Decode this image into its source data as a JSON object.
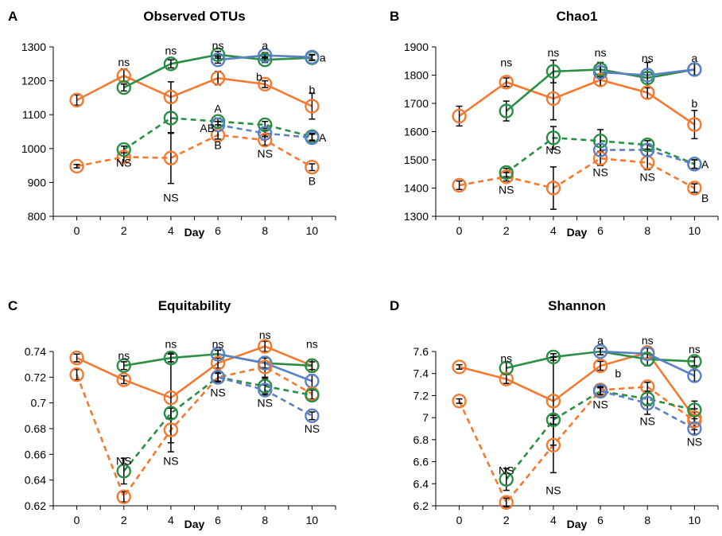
{
  "colors": {
    "orange": "#f47a32",
    "green": "#2a8f45",
    "blue": "#5b80c4",
    "error_bar": "#000000",
    "axis": "#000000"
  },
  "chart_data": [
    {
      "panel": "A",
      "title": "Observed OTUs",
      "type": "line",
      "xlabel": "Day",
      "ylabel": "",
      "xlim": [
        -1,
        11
      ],
      "xticks": [
        0,
        2,
        4,
        6,
        8,
        10
      ],
      "ylim": [
        800,
        1300
      ],
      "yticks": [
        800,
        900,
        1000,
        1100,
        1200,
        1300
      ],
      "grid": false,
      "legend": "none",
      "series": [
        {
          "color": "orange",
          "dashed": false,
          "x": [
            0,
            2,
            4,
            6,
            8,
            10
          ],
          "values": [
            1143,
            1215,
            1152,
            1208,
            1190,
            1125
          ],
          "error": [
            15,
            20,
            45,
            20,
            10,
            38
          ]
        },
        {
          "color": "green",
          "dashed": false,
          "x": [
            2,
            4,
            6,
            8,
            10
          ],
          "values": [
            1180,
            1250,
            1277,
            1262,
            1268
          ],
          "error": [
            10,
            12,
            10,
            8,
            8
          ]
        },
        {
          "color": "blue",
          "dashed": false,
          "x": [
            6,
            8,
            10
          ],
          "values": [
            1262,
            1275,
            1270
          ],
          "error": [
            10,
            8,
            8
          ]
        },
        {
          "color": "orange",
          "dashed": true,
          "x": [
            0,
            2,
            4,
            6,
            8,
            10
          ],
          "values": [
            948,
            975,
            972,
            1040,
            1025,
            945
          ],
          "error": [
            5,
            18,
            75,
            12,
            15,
            10
          ]
        },
        {
          "color": "green",
          "dashed": true,
          "x": [
            2,
            4,
            6,
            8,
            10
          ],
          "values": [
            997,
            1090,
            1080,
            1070,
            1035
          ],
          "error": [
            10,
            45,
            10,
            10,
            10
          ]
        },
        {
          "color": "blue",
          "dashed": true,
          "x": [
            6,
            8,
            10
          ],
          "values": [
            1070,
            1045,
            1032
          ],
          "error": [
            10,
            10,
            10
          ]
        }
      ],
      "annotations": [
        {
          "text": "ns",
          "x": 2,
          "y": 1255
        },
        {
          "text": "ns",
          "x": 4,
          "y": 1290
        },
        {
          "text": "ns",
          "x": 6,
          "y": 1305
        },
        {
          "text": "a",
          "x": 8,
          "y": 1305
        },
        {
          "text": "a",
          "x": 10.45,
          "y": 1268
        },
        {
          "text": "b",
          "x": 7.75,
          "y": 1212
        },
        {
          "text": "b",
          "x": 10,
          "y": 1175
        },
        {
          "text": "A",
          "x": 6,
          "y": 1118
        },
        {
          "text": "AB",
          "x": 5.55,
          "y": 1060
        },
        {
          "text": "A",
          "x": 10.45,
          "y": 1032
        },
        {
          "text": "B",
          "x": 6,
          "y": 1010
        },
        {
          "text": "NS",
          "x": 2,
          "y": 958
        },
        {
          "text": "NS",
          "x": 8,
          "y": 985
        },
        {
          "text": "B",
          "x": 10,
          "y": 905
        },
        {
          "text": "NS",
          "x": 4,
          "y": 855
        }
      ]
    },
    {
      "panel": "B",
      "title": "Chao1",
      "type": "line",
      "xlabel": "Day",
      "ylabel": "",
      "xlim": [
        -1,
        11
      ],
      "xticks": [
        0,
        2,
        4,
        6,
        8,
        10
      ],
      "ylim": [
        1300,
        1900
      ],
      "yticks": [
        1300,
        1400,
        1500,
        1600,
        1700,
        1800,
        1900
      ],
      "grid": false,
      "legend": "none",
      "series": [
        {
          "color": "orange",
          "dashed": false,
          "x": [
            0,
            2,
            4,
            6,
            8,
            10
          ],
          "values": [
            1655,
            1775,
            1717,
            1783,
            1738,
            1625
          ],
          "error": [
            35,
            15,
            75,
            20,
            20,
            50
          ]
        },
        {
          "color": "green",
          "dashed": false,
          "x": [
            2,
            4,
            6,
            8,
            10
          ],
          "values": [
            1673,
            1813,
            1820,
            1790,
            1820
          ],
          "error": [
            35,
            40,
            25,
            20,
            20
          ]
        },
        {
          "color": "blue",
          "dashed": false,
          "x": [
            6,
            8,
            10
          ],
          "values": [
            1810,
            1800,
            1820
          ],
          "error": [
            20,
            45,
            20
          ]
        },
        {
          "color": "orange",
          "dashed": true,
          "x": [
            0,
            2,
            4,
            6,
            8,
            10
          ],
          "values": [
            1410,
            1440,
            1400,
            1505,
            1490,
            1400
          ],
          "error": [
            15,
            15,
            75,
            25,
            25,
            15
          ]
        },
        {
          "color": "green",
          "dashed": true,
          "x": [
            2,
            4,
            6,
            8,
            10
          ],
          "values": [
            1455,
            1578,
            1567,
            1553,
            1485
          ],
          "error": [
            15,
            40,
            40,
            15,
            15
          ]
        },
        {
          "color": "blue",
          "dashed": true,
          "x": [
            6,
            8,
            10
          ],
          "values": [
            1535,
            1535,
            1485
          ],
          "error": [
            20,
            20,
            15
          ]
        }
      ],
      "annotations": [
        {
          "text": "ns",
          "x": 2,
          "y": 1845
        },
        {
          "text": "ns",
          "x": 4,
          "y": 1880
        },
        {
          "text": "ns",
          "x": 6,
          "y": 1880
        },
        {
          "text": "ns",
          "x": 8,
          "y": 1860
        },
        {
          "text": "a",
          "x": 10,
          "y": 1860
        },
        {
          "text": "b",
          "x": 10,
          "y": 1700
        },
        {
          "text": "A",
          "x": 10.45,
          "y": 1485
        },
        {
          "text": "NS",
          "x": 4,
          "y": 1535
        },
        {
          "text": "NS",
          "x": 6,
          "y": 1457
        },
        {
          "text": "NS",
          "x": 8,
          "y": 1440
        },
        {
          "text": "NS",
          "x": 2,
          "y": 1395
        },
        {
          "text": "B",
          "x": 10.45,
          "y": 1365
        }
      ]
    },
    {
      "panel": "C",
      "title": "Equitability",
      "type": "line",
      "xlabel": "Day",
      "ylabel": "",
      "xlim": [
        -1,
        11
      ],
      "xticks": [
        0,
        2,
        4,
        6,
        8,
        10
      ],
      "ylim": [
        0.62,
        0.74
      ],
      "yticks": [
        0.62,
        0.64,
        0.66,
        0.68,
        0.7,
        0.72,
        0.74
      ],
      "yticklabels": [
        "0.62",
        "0.64",
        "0.66",
        "0.68",
        "0.7",
        "0.72",
        "0.74"
      ],
      "grid": false,
      "legend": "none",
      "series": [
        {
          "color": "orange",
          "dashed": false,
          "x": [
            0,
            2,
            4,
            6,
            8,
            10
          ],
          "values": [
            0.735,
            0.718,
            0.704,
            0.731,
            0.744,
            0.729
          ],
          "error": [
            0.003,
            0.003,
            0.035,
            0.004,
            0.004,
            0.005
          ]
        },
        {
          "color": "green",
          "dashed": false,
          "x": [
            2,
            4,
            6,
            8,
            10
          ],
          "values": [
            0.729,
            0.735,
            0.738,
            0.731,
            0.729
          ],
          "error": [
            0.003,
            0.003,
            0.003,
            0.004,
            0.003
          ]
        },
        {
          "color": "blue",
          "dashed": false,
          "x": [
            6,
            8,
            10
          ],
          "values": [
            0.738,
            0.731,
            0.717
          ],
          "error": [
            0.003,
            0.004,
            0.005
          ]
        },
        {
          "color": "orange",
          "dashed": true,
          "x": [
            0,
            2,
            4,
            6,
            8,
            10
          ],
          "values": [
            0.722,
            0.627,
            0.679,
            0.72,
            0.728,
            0.707
          ],
          "error": [
            0.004,
            0.004,
            0.017,
            0.004,
            0.008,
            0.004
          ]
        },
        {
          "color": "green",
          "dashed": true,
          "x": [
            2,
            4,
            6,
            8,
            10
          ],
          "values": [
            0.647,
            0.692,
            0.72,
            0.713,
            0.706
          ],
          "error": [
            0.01,
            0.004,
            0.004,
            0.006,
            0.004
          ]
        },
        {
          "color": "blue",
          "dashed": true,
          "x": [
            6,
            8,
            10
          ],
          "values": [
            0.72,
            0.71,
            0.69
          ],
          "error": [
            0.003,
            0.004,
            0.003
          ]
        }
      ],
      "annotations": [
        {
          "text": "ns",
          "x": 2,
          "y": 0.737
        },
        {
          "text": "ns",
          "x": 4,
          "y": 0.746
        },
        {
          "text": "ns",
          "x": 6,
          "y": 0.746
        },
        {
          "text": "ns",
          "x": 8,
          "y": 0.753
        },
        {
          "text": "ns",
          "x": 10,
          "y": 0.746
        },
        {
          "text": "NS",
          "x": 2,
          "y": 0.655
        },
        {
          "text": "NS",
          "x": 4,
          "y": 0.655
        },
        {
          "text": "NS",
          "x": 6,
          "y": 0.708
        },
        {
          "text": "NS",
          "x": 8,
          "y": 0.7
        },
        {
          "text": "NS",
          "x": 10,
          "y": 0.68
        }
      ]
    },
    {
      "panel": "D",
      "title": "Shannon",
      "type": "line",
      "xlabel": "Day",
      "ylabel": "",
      "xlim": [
        -1,
        11
      ],
      "xticks": [
        0,
        2,
        4,
        6,
        8,
        10
      ],
      "ylim": [
        6.2,
        7.6
      ],
      "yticks": [
        6.2,
        6.4,
        6.6,
        6.8,
        7.0,
        7.2,
        7.4,
        7.6
      ],
      "yticklabels": [
        "6.2",
        "6.4",
        "6.6",
        "6.8",
        "7",
        "7.2",
        "7.4",
        "7.6"
      ],
      "grid": false,
      "legend": "none",
      "series": [
        {
          "color": "orange",
          "dashed": false,
          "x": [
            0,
            2,
            4,
            6,
            8,
            10
          ],
          "values": [
            7.46,
            7.35,
            7.15,
            7.47,
            7.59,
            7.0
          ],
          "error": [
            0.02,
            0.04,
            0.4,
            0.04,
            0.05,
            0.08
          ]
        },
        {
          "color": "green",
          "dashed": false,
          "x": [
            2,
            4,
            6,
            8,
            10
          ],
          "values": [
            7.45,
            7.55,
            7.6,
            7.53,
            7.51
          ],
          "error": [
            0.05,
            0.03,
            0.03,
            0.06,
            0.04
          ]
        },
        {
          "color": "blue",
          "dashed": false,
          "x": [
            6,
            8,
            10
          ],
          "values": [
            7.6,
            7.58,
            7.38
          ],
          "error": [
            0.03,
            0.05,
            0.05
          ]
        },
        {
          "color": "orange",
          "dashed": true,
          "x": [
            0,
            2,
            4,
            6,
            8,
            10
          ],
          "values": [
            7.15,
            6.23,
            6.75,
            7.25,
            7.28,
            6.97
          ],
          "error": [
            0.02,
            0.04,
            0.25,
            0.04,
            0.04,
            0.08
          ]
        },
        {
          "color": "green",
          "dashed": true,
          "x": [
            2,
            4,
            6,
            8,
            10
          ],
          "values": [
            6.44,
            6.98,
            7.24,
            7.17,
            7.07
          ],
          "error": [
            0.1,
            0.04,
            0.04,
            0.06,
            0.08
          ]
        },
        {
          "color": "blue",
          "dashed": true,
          "x": [
            6,
            8,
            10
          ],
          "values": [
            7.24,
            7.13,
            6.9
          ],
          "error": [
            0.03,
            0.1,
            0.05
          ]
        }
      ],
      "annotations": [
        {
          "text": "ns",
          "x": 2,
          "y": 7.54
        },
        {
          "text": "a",
          "x": 6,
          "y": 7.7
        },
        {
          "text": "b",
          "x": 6.75,
          "y": 7.4
        },
        {
          "text": "ns",
          "x": 8,
          "y": 7.7
        },
        {
          "text": "ns",
          "x": 10,
          "y": 7.62
        },
        {
          "text": "NS",
          "x": 2,
          "y": 6.52
        },
        {
          "text": "NS",
          "x": 6,
          "y": 7.12
        },
        {
          "text": "NS",
          "x": 8,
          "y": 6.97
        },
        {
          "text": "NS",
          "x": 10,
          "y": 6.78
        },
        {
          "text": "NS",
          "x": 4,
          "y": 6.34
        }
      ]
    }
  ]
}
